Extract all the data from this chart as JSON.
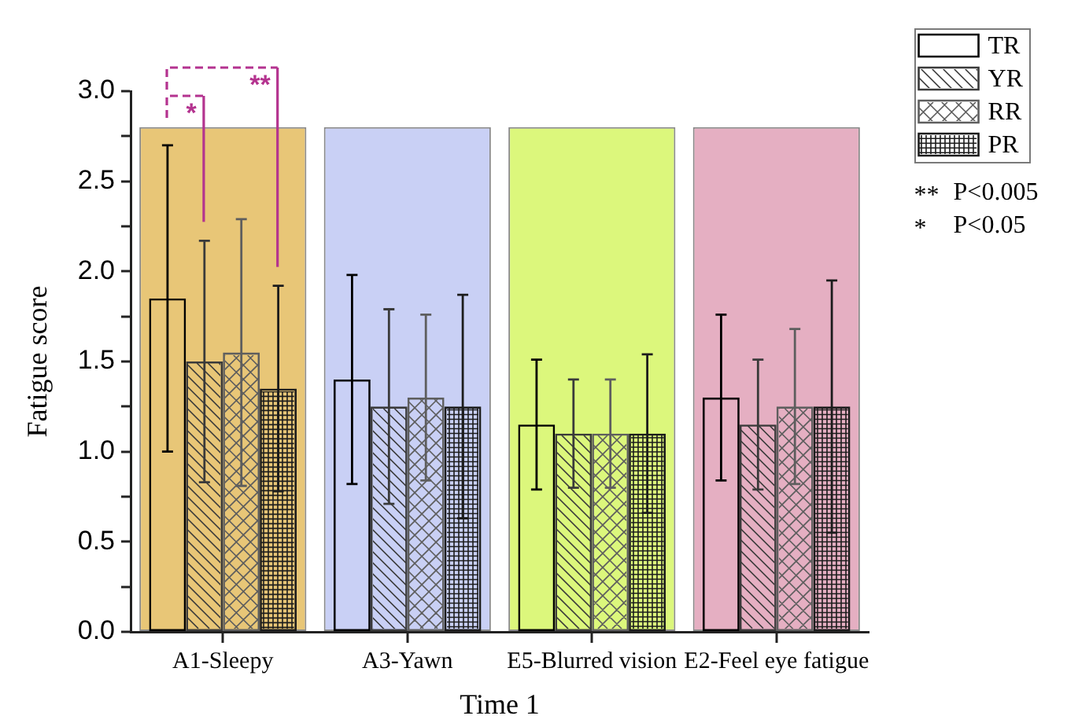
{
  "chart_data": {
    "type": "bar",
    "xlabel": "Time 1",
    "ylabel": "Fatigue score",
    "categories": [
      "A1-Sleepy",
      "A3-Yawn",
      "E5-Blurred vision",
      "E2-Feel eye fatigue"
    ],
    "series": [
      {
        "colors": [
          "#e8c677",
          "#c9d0f5",
          "#dcf77c",
          "#e5afc2"
        ],
        "values": [
          2.8,
          2.8,
          2.8,
          2.8
        ]
      },
      {
        "name": "TR",
        "color": "#000000",
        "values": [
          1.85,
          1.4,
          1.15,
          1.3
        ],
        "errors": [
          0.85,
          0.58,
          0.36,
          0.46
        ]
      },
      {
        "name": "YR",
        "color": "#3a3a3a",
        "values": [
          1.5,
          1.25,
          1.1,
          1.15
        ],
        "errors": [
          0.67,
          0.54,
          0.3,
          0.36
        ]
      },
      {
        "name": "RR",
        "color": "#5e5e5e",
        "values": [
          1.55,
          1.3,
          1.1,
          1.25
        ],
        "errors": [
          0.74,
          0.46,
          0.3,
          0.43
        ]
      },
      {
        "name": "PR",
        "color": "#1c1c1c",
        "values": [
          1.35,
          1.25,
          1.1,
          1.25
        ],
        "errors": [
          0.57,
          0.62,
          0.44,
          0.7
        ]
      }
    ],
    "ylim": [
      0,
      3
    ],
    "yticks": [
      {
        "value": 0,
        "label": "0.0"
      },
      {
        "value": 0.25,
        "label": null
      },
      0.5,
      {
        "value": 0.75,
        "label": null
      },
      {
        "value": 1,
        "label": "1.0"
      },
      {
        "value": 1.25,
        "label": null
      },
      1.5,
      {
        "value": 1.75,
        "label": null
      },
      {
        "value": 2,
        "label": "2.0"
      },
      {
        "value": 2.25,
        "label": null
      },
      2.5,
      {
        "value": 2.75,
        "label": null
      },
      {
        "value": 3,
        "label": "3.0"
      }
    ],
    "grid": false,
    "legend": "top right",
    "annotations": [
      "*",
      "**",
      "** P<0.005",
      "* P<0.05"
    ]
  }
}
